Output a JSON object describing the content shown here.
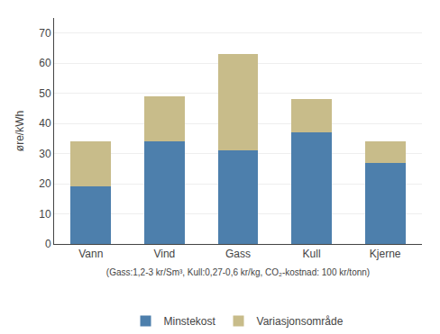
{
  "chart_data": {
    "type": "bar",
    "stacked": true,
    "categories": [
      "Vann",
      "Vind",
      "Gass",
      "Kull",
      "Kjerne"
    ],
    "series": [
      {
        "name": "Minstekost",
        "color": "#4d7fac",
        "values": [
          19,
          34,
          31,
          37,
          27
        ]
      },
      {
        "name": "Variasjonsområde",
        "color": "#c8bc8a",
        "values": [
          15,
          15,
          32,
          11,
          7
        ]
      }
    ],
    "ylabel": "øre/kWh",
    "xlabel": "(Gass:1,2-3 kr/Sm³, Kull:0,27-0,6 kr/kg, CO₂-kostnad: 100 kr/tonn)",
    "ylim": [
      0,
      75
    ],
    "yticks": [
      0,
      10,
      20,
      30,
      40,
      50,
      60,
      70
    ],
    "grid": true,
    "legend": "bottom"
  }
}
